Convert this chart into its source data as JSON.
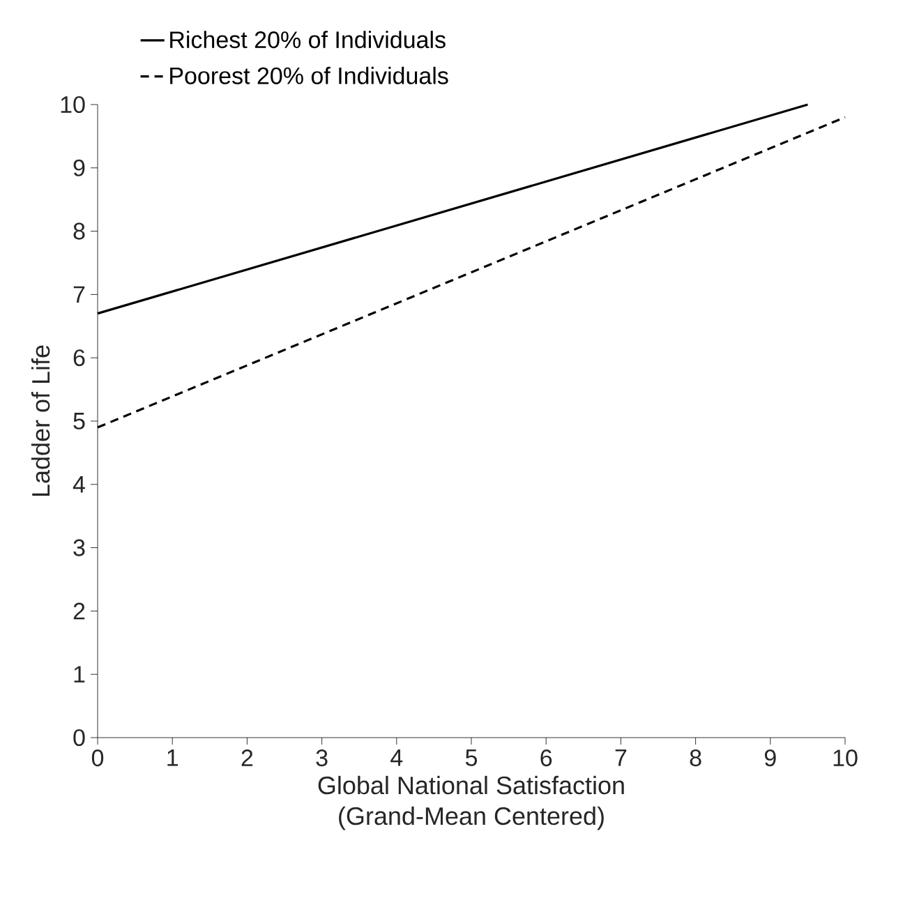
{
  "chart_data": {
    "type": "line",
    "xlabel": "Global National Satisfaction\n(Grand-Mean Centered)",
    "ylabel": "Ladder of Life",
    "series": [
      {
        "name": "Richest 20% of Individuals",
        "color": "#000000",
        "line_style": "solid",
        "x": [
          0,
          9.5
        ],
        "values": [
          6.7,
          10
        ]
      },
      {
        "name": "Poorest 20% of Individuals",
        "color": "#000000",
        "line_style": "dashed",
        "x": [
          0,
          10
        ],
        "values": [
          4.9,
          9.8
        ]
      }
    ],
    "xlim": [
      0,
      10
    ],
    "ylim": [
      0,
      10
    ],
    "xticks": [
      0,
      1,
      2,
      3,
      4,
      5,
      6,
      7,
      8,
      9,
      10
    ],
    "yticks": [
      0,
      1,
      2,
      3,
      4,
      5,
      6,
      7,
      8,
      9,
      10
    ],
    "grid": false,
    "legend": "top",
    "marker": "none"
  }
}
